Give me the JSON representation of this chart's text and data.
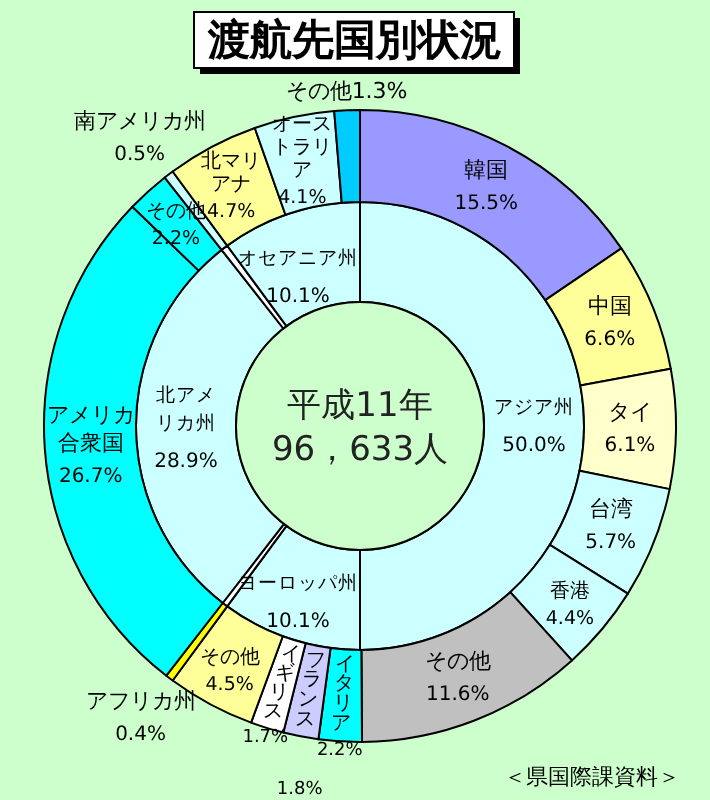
{
  "chart_data": [
    {
      "type": "donut",
      "title": "渡航先国別状況",
      "annotations": [
        "平成11年",
        "96，633人",
        "＜県国際課資料＞"
      ],
      "categories": [
        "アジア州",
        "ヨーロッパ州",
        null,
        "北アメリカ州",
        null,
        "オセアニア州"
      ],
      "values": [
        50.0,
        10.1,
        0.4,
        28.9,
        0.5,
        10.1
      ],
      "value_labels": [
        "50.0%",
        "10.1%",
        null,
        "28.9%",
        null,
        "10.1%"
      ],
      "colors": [
        "#ccffff",
        "#ccffff",
        "#ffffff",
        "#ccffff",
        "#ffffff",
        "#ccffff"
      ]
    },
    {
      "type": "donut",
      "categories": [
        "韓国",
        "中国",
        "タイ",
        "台湾",
        "香港",
        "その他",
        "イタリア",
        "フランス",
        "イギリス",
        "その他",
        "アフリカ州",
        "アメリカ合衆国",
        "その他",
        "南アメリカ州",
        "北マリアナ",
        "オーストラリア",
        "その他"
      ],
      "values": [
        15.5,
        6.6,
        6.1,
        5.7,
        4.4,
        11.6,
        2.2,
        1.8,
        1.7,
        4.5,
        0.4,
        26.7,
        2.2,
        0.5,
        4.7,
        4.1,
        1.3
      ],
      "value_labels": [
        "15.5%",
        "6.6%",
        "6.1%",
        "5.7%",
        "4.4%",
        "11.6%",
        "2.2%",
        "1.8%",
        "1.7%",
        "4.5%",
        "0.4%",
        "26.7%",
        "2.2%",
        "0.5%",
        "4.7%",
        "4.1%",
        "1.3%"
      ],
      "colors": [
        "#9999ff",
        "#ffff99",
        "#ffffcc",
        "#ccffff",
        "#ccffff",
        "#c0c0c0",
        "#00ffff",
        "#ccccff",
        "#ffffff",
        "#ffff99",
        "#ffff00",
        "#00ffff",
        "#00ffff",
        "#ccffff",
        "#ffff99",
        "#ccffff",
        "#00ccff"
      ]
    }
  ]
}
